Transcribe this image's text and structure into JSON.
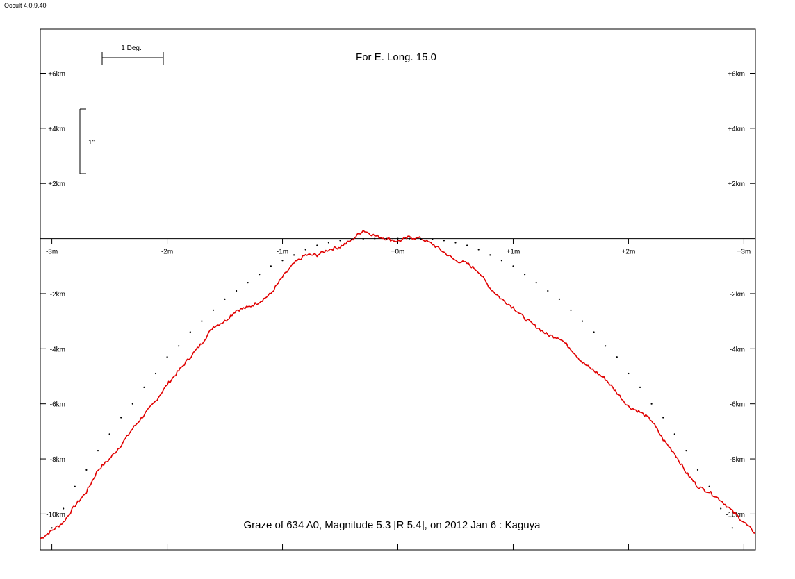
{
  "app": {
    "version": "Occult 4.0.9.40"
  },
  "chart_data": {
    "type": "line",
    "title": "For E. Long. 15.0",
    "subtitle": "Graze of  634 A0,  Magnitude 5.3 [R 5.4],  on 2012 Jan  6  :  Kaguya",
    "scale_markers": {
      "horizontal": "1 Deg.",
      "vertical": "1\""
    },
    "x_ticks": [
      "-3m",
      "-2m",
      "-1m",
      "+0m",
      "+1m",
      "+2m",
      "+3m"
    ],
    "y_ticks": [
      "+6km",
      "+4km",
      "+2km",
      "-2km",
      "-4km",
      "-6km",
      "-8km",
      "-10km"
    ],
    "xlim": [
      -3.1,
      3.1
    ],
    "ylim": [
      -11.3,
      7.6
    ],
    "grid": false,
    "colors": {
      "profile": "#e00000",
      "predicted": "#000000",
      "axis": "#000000"
    },
    "series": [
      {
        "values": [
          [
            -3.1,
            -10.9
          ],
          [
            -3.0,
            -10.6
          ],
          [
            -2.9,
            -10.3
          ],
          [
            -2.8,
            -9.7
          ],
          [
            -2.7,
            -9.2
          ],
          [
            -2.6,
            -8.4
          ],
          [
            -2.5,
            -8.0
          ],
          [
            -2.4,
            -7.5
          ],
          [
            -2.3,
            -6.9
          ],
          [
            -2.2,
            -6.4
          ],
          [
            -2.1,
            -5.9
          ],
          [
            -2.0,
            -5.3
          ],
          [
            -1.9,
            -4.8
          ],
          [
            -1.8,
            -4.3
          ],
          [
            -1.7,
            -3.8
          ],
          [
            -1.6,
            -3.2
          ],
          [
            -1.5,
            -3.0
          ],
          [
            -1.4,
            -2.6
          ],
          [
            -1.3,
            -2.5
          ],
          [
            -1.2,
            -2.3
          ],
          [
            -1.1,
            -2.0
          ],
          [
            -1.0,
            -1.4
          ],
          [
            -0.9,
            -0.9
          ],
          [
            -0.8,
            -0.6
          ],
          [
            -0.7,
            -0.6
          ],
          [
            -0.6,
            -0.4
          ],
          [
            -0.5,
            -0.3
          ],
          [
            -0.4,
            -0.05
          ],
          [
            -0.3,
            0.3
          ],
          [
            -0.2,
            0.1
          ],
          [
            -0.1,
            0.0
          ],
          [
            0.0,
            -0.1
          ],
          [
            0.1,
            0.05
          ],
          [
            0.2,
            0.0
          ],
          [
            0.3,
            -0.2
          ],
          [
            0.4,
            -0.5
          ],
          [
            0.5,
            -0.8
          ],
          [
            0.6,
            -0.9
          ],
          [
            0.7,
            -1.2
          ],
          [
            0.8,
            -1.8
          ],
          [
            0.9,
            -2.2
          ],
          [
            1.0,
            -2.5
          ],
          [
            1.1,
            -2.9
          ],
          [
            1.2,
            -3.2
          ],
          [
            1.3,
            -3.5
          ],
          [
            1.4,
            -3.6
          ],
          [
            1.5,
            -4.0
          ],
          [
            1.6,
            -4.5
          ],
          [
            1.7,
            -4.8
          ],
          [
            1.8,
            -5.1
          ],
          [
            1.9,
            -5.6
          ],
          [
            2.0,
            -6.1
          ],
          [
            2.1,
            -6.3
          ],
          [
            2.2,
            -6.6
          ],
          [
            2.3,
            -7.3
          ],
          [
            2.4,
            -7.8
          ],
          [
            2.5,
            -8.5
          ],
          [
            2.6,
            -9.0
          ],
          [
            2.7,
            -9.2
          ],
          [
            2.8,
            -9.5
          ],
          [
            2.9,
            -9.9
          ],
          [
            3.0,
            -10.3
          ],
          [
            3.1,
            -10.7
          ]
        ]
      },
      {
        "values": [
          [
            -3.0,
            -10.5
          ],
          [
            -2.9,
            -9.8
          ],
          [
            -2.8,
            -9.0
          ],
          [
            -2.7,
            -8.4
          ],
          [
            -2.6,
            -7.7
          ],
          [
            -2.5,
            -7.1
          ],
          [
            -2.4,
            -6.5
          ],
          [
            -2.3,
            -6.0
          ],
          [
            -2.2,
            -5.4
          ],
          [
            -2.1,
            -4.9
          ],
          [
            -2.0,
            -4.3
          ],
          [
            -1.9,
            -3.9
          ],
          [
            -1.8,
            -3.4
          ],
          [
            -1.7,
            -3.0
          ],
          [
            -1.6,
            -2.6
          ],
          [
            -1.5,
            -2.2
          ],
          [
            -1.4,
            -1.9
          ],
          [
            -1.3,
            -1.6
          ],
          [
            -1.2,
            -1.3
          ],
          [
            -1.1,
            -1.0
          ],
          [
            -1.0,
            -0.8
          ],
          [
            -0.9,
            -0.6
          ],
          [
            -0.8,
            -0.4
          ],
          [
            -0.7,
            -0.25
          ],
          [
            -0.6,
            -0.15
          ],
          [
            -0.5,
            -0.07
          ],
          [
            -0.4,
            -0.03
          ],
          [
            -0.3,
            -0.01
          ],
          [
            -0.2,
            0.0
          ],
          [
            -0.1,
            0.0
          ],
          [
            0.0,
            0.0
          ],
          [
            0.1,
            0.0
          ],
          [
            0.2,
            -0.01
          ],
          [
            0.3,
            -0.03
          ],
          [
            0.4,
            -0.07
          ],
          [
            0.5,
            -0.15
          ],
          [
            0.6,
            -0.25
          ],
          [
            0.7,
            -0.4
          ],
          [
            0.8,
            -0.6
          ],
          [
            0.9,
            -0.8
          ],
          [
            1.0,
            -1.0
          ],
          [
            1.1,
            -1.3
          ],
          [
            1.2,
            -1.6
          ],
          [
            1.3,
            -1.9
          ],
          [
            1.4,
            -2.2
          ],
          [
            1.5,
            -2.6
          ],
          [
            1.6,
            -3.0
          ],
          [
            1.7,
            -3.4
          ],
          [
            1.8,
            -3.9
          ],
          [
            1.9,
            -4.3
          ],
          [
            2.0,
            -4.9
          ],
          [
            2.1,
            -5.4
          ],
          [
            2.2,
            -6.0
          ],
          [
            2.3,
            -6.5
          ],
          [
            2.4,
            -7.1
          ],
          [
            2.5,
            -7.7
          ],
          [
            2.6,
            -8.4
          ],
          [
            2.7,
            -9.0
          ],
          [
            2.8,
            -9.8
          ],
          [
            2.9,
            -10.5
          ]
        ]
      }
    ]
  }
}
